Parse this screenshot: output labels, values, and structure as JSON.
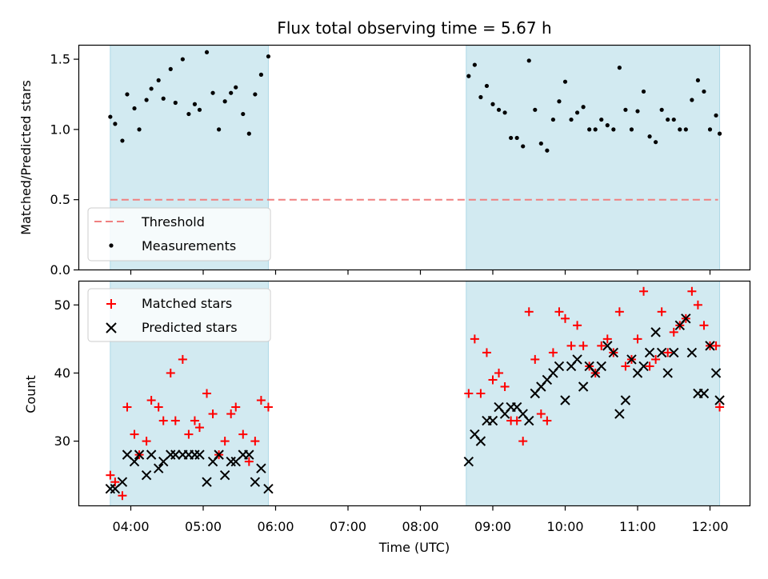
{
  "chart_data": {
    "type": "scatter",
    "title": "Flux total observing time = 5.67 h",
    "xlabel": "Time (UTC)",
    "x_tick_labels": [
      "04:00",
      "05:00",
      "06:00",
      "07:00",
      "08:00",
      "09:00",
      "10:00",
      "11:00",
      "12:00"
    ],
    "shaded_intervals": [
      [
        "03:43",
        "05:54"
      ],
      [
        "08:38",
        "12:08"
      ]
    ],
    "shade_color": "#add8e6",
    "panels": [
      {
        "ylabel": "Matched/Predicted stars",
        "ylim": [
          0,
          1.6
        ],
        "y_tick_labels": [
          "0.0",
          "0.5",
          "1.0",
          "1.5"
        ],
        "threshold": {
          "name": "Threshold",
          "value": 0.5,
          "color": "#f08080"
        },
        "series": [
          {
            "name": "Measurements",
            "color": "#000000",
            "marker": "dot",
            "points": [
              [
                "03:43",
                1.09
              ],
              [
                "03:47",
                1.04
              ],
              [
                "03:53",
                0.92
              ],
              [
                "03:57",
                1.25
              ],
              [
                "04:03",
                1.15
              ],
              [
                "04:07",
                1.0
              ],
              [
                "04:13",
                1.21
              ],
              [
                "04:17",
                1.29
              ],
              [
                "04:23",
                1.35
              ],
              [
                "04:27",
                1.22
              ],
              [
                "04:33",
                1.43
              ],
              [
                "04:37",
                1.19
              ],
              [
                "04:43",
                1.5
              ],
              [
                "04:48",
                1.11
              ],
              [
                "04:53",
                1.18
              ],
              [
                "04:57",
                1.14
              ],
              [
                "05:03",
                1.55
              ],
              [
                "05:08",
                1.26
              ],
              [
                "05:13",
                1.0
              ],
              [
                "05:18",
                1.2
              ],
              [
                "05:23",
                1.26
              ],
              [
                "05:27",
                1.3
              ],
              [
                "05:33",
                1.11
              ],
              [
                "05:38",
                0.97
              ],
              [
                "05:43",
                1.25
              ],
              [
                "05:48",
                1.39
              ],
              [
                "05:54",
                1.52
              ],
              [
                "08:40",
                1.38
              ],
              [
                "08:45",
                1.46
              ],
              [
                "08:50",
                1.23
              ],
              [
                "08:55",
                1.31
              ],
              [
                "09:00",
                1.18
              ],
              [
                "09:05",
                1.14
              ],
              [
                "09:10",
                1.12
              ],
              [
                "09:15",
                0.94
              ],
              [
                "09:20",
                0.94
              ],
              [
                "09:25",
                0.88
              ],
              [
                "09:30",
                1.49
              ],
              [
                "09:35",
                1.14
              ],
              [
                "09:40",
                0.9
              ],
              [
                "09:45",
                0.85
              ],
              [
                "09:50",
                1.07
              ],
              [
                "09:55",
                1.2
              ],
              [
                "10:00",
                1.34
              ],
              [
                "10:05",
                1.07
              ],
              [
                "10:10",
                1.12
              ],
              [
                "10:15",
                1.16
              ],
              [
                "10:20",
                1.0
              ],
              [
                "10:25",
                1.0
              ],
              [
                "10:30",
                1.07
              ],
              [
                "10:35",
                1.03
              ],
              [
                "10:40",
                1.0
              ],
              [
                "10:45",
                1.44
              ],
              [
                "10:50",
                1.14
              ],
              [
                "10:55",
                1.0
              ],
              [
                "11:00",
                1.13
              ],
              [
                "11:05",
                1.27
              ],
              [
                "11:10",
                0.95
              ],
              [
                "11:15",
                0.91
              ],
              [
                "11:20",
                1.14
              ],
              [
                "11:25",
                1.07
              ],
              [
                "11:30",
                1.07
              ],
              [
                "11:35",
                1.0
              ],
              [
                "11:40",
                1.0
              ],
              [
                "11:45",
                1.21
              ],
              [
                "11:50",
                1.35
              ],
              [
                "11:55",
                1.27
              ],
              [
                "12:00",
                1.0
              ],
              [
                "12:05",
                1.1
              ],
              [
                "12:08",
                0.97
              ]
            ]
          }
        ],
        "legend": {
          "position": "lower-left",
          "entries": [
            "Threshold",
            "Measurements"
          ]
        }
      },
      {
        "ylabel": "Count",
        "ylim": [
          20.5,
          53.5
        ],
        "y_tick_labels": [
          "30",
          "40",
          "50"
        ],
        "series": [
          {
            "name": "Matched stars",
            "color": "#ff0000",
            "marker": "plus",
            "points": [
              [
                "03:43",
                25
              ],
              [
                "03:47",
                24
              ],
              [
                "03:53",
                22
              ],
              [
                "03:57",
                35
              ],
              [
                "04:03",
                31
              ],
              [
                "04:07",
                28
              ],
              [
                "04:13",
                30
              ],
              [
                "04:17",
                36
              ],
              [
                "04:23",
                35
              ],
              [
                "04:27",
                33
              ],
              [
                "04:33",
                40
              ],
              [
                "04:37",
                33
              ],
              [
                "04:43",
                42
              ],
              [
                "04:48",
                31
              ],
              [
                "04:53",
                33
              ],
              [
                "04:57",
                32
              ],
              [
                "05:03",
                37
              ],
              [
                "05:08",
                34
              ],
              [
                "05:13",
                28
              ],
              [
                "05:18",
                30
              ],
              [
                "05:23",
                34
              ],
              [
                "05:27",
                35
              ],
              [
                "05:33",
                31
              ],
              [
                "05:38",
                27
              ],
              [
                "05:43",
                30
              ],
              [
                "05:48",
                36
              ],
              [
                "05:54",
                35
              ],
              [
                "08:40",
                37
              ],
              [
                "08:45",
                45
              ],
              [
                "08:50",
                37
              ],
              [
                "08:55",
                43
              ],
              [
                "09:00",
                39
              ],
              [
                "09:05",
                40
              ],
              [
                "09:10",
                38
              ],
              [
                "09:15",
                33
              ],
              [
                "09:20",
                33
              ],
              [
                "09:25",
                30
              ],
              [
                "09:30",
                49
              ],
              [
                "09:35",
                42
              ],
              [
                "09:40",
                34
              ],
              [
                "09:45",
                33
              ],
              [
                "09:50",
                43
              ],
              [
                "09:55",
                49
              ],
              [
                "10:00",
                48
              ],
              [
                "10:05",
                44
              ],
              [
                "10:10",
                47
              ],
              [
                "10:15",
                44
              ],
              [
                "10:20",
                41
              ],
              [
                "10:25",
                40
              ],
              [
                "10:30",
                44
              ],
              [
                "10:35",
                45
              ],
              [
                "10:40",
                43
              ],
              [
                "10:45",
                49
              ],
              [
                "10:50",
                41
              ],
              [
                "10:55",
                42
              ],
              [
                "11:00",
                45
              ],
              [
                "11:05",
                52
              ],
              [
                "11:10",
                41
              ],
              [
                "11:15",
                42
              ],
              [
                "11:20",
                49
              ],
              [
                "11:25",
                43
              ],
              [
                "11:30",
                46
              ],
              [
                "11:35",
                47
              ],
              [
                "11:40",
                48
              ],
              [
                "11:45",
                52
              ],
              [
                "11:50",
                50
              ],
              [
                "11:55",
                47
              ],
              [
                "12:00",
                44
              ],
              [
                "12:05",
                44
              ],
              [
                "12:08",
                35
              ]
            ]
          },
          {
            "name": "Predicted stars",
            "color": "#000000",
            "marker": "x",
            "points": [
              [
                "03:43",
                23
              ],
              [
                "03:47",
                23
              ],
              [
                "03:53",
                24
              ],
              [
                "03:57",
                28
              ],
              [
                "04:03",
                27
              ],
              [
                "04:07",
                28
              ],
              [
                "04:13",
                25
              ],
              [
                "04:17",
                28
              ],
              [
                "04:23",
                26
              ],
              [
                "04:27",
                27
              ],
              [
                "04:33",
                28
              ],
              [
                "04:37",
                28
              ],
              [
                "04:43",
                28
              ],
              [
                "04:48",
                28
              ],
              [
                "04:53",
                28
              ],
              [
                "04:57",
                28
              ],
              [
                "05:03",
                24
              ],
              [
                "05:08",
                27
              ],
              [
                "05:13",
                28
              ],
              [
                "05:18",
                25
              ],
              [
                "05:23",
                27
              ],
              [
                "05:27",
                27
              ],
              [
                "05:33",
                28
              ],
              [
                "05:38",
                28
              ],
              [
                "05:43",
                24
              ],
              [
                "05:48",
                26
              ],
              [
                "05:54",
                23
              ],
              [
                "08:40",
                27
              ],
              [
                "08:45",
                31
              ],
              [
                "08:50",
                30
              ],
              [
                "08:55",
                33
              ],
              [
                "09:00",
                33
              ],
              [
                "09:05",
                35
              ],
              [
                "09:10",
                34
              ],
              [
                "09:15",
                35
              ],
              [
                "09:20",
                35
              ],
              [
                "09:25",
                34
              ],
              [
                "09:30",
                33
              ],
              [
                "09:35",
                37
              ],
              [
                "09:40",
                38
              ],
              [
                "09:45",
                39
              ],
              [
                "09:50",
                40
              ],
              [
                "09:55",
                41
              ],
              [
                "10:00",
                36
              ],
              [
                "10:05",
                41
              ],
              [
                "10:10",
                42
              ],
              [
                "10:15",
                38
              ],
              [
                "10:20",
                41
              ],
              [
                "10:25",
                40
              ],
              [
                "10:30",
                41
              ],
              [
                "10:35",
                44
              ],
              [
                "10:40",
                43
              ],
              [
                "10:45",
                34
              ],
              [
                "10:50",
                36
              ],
              [
                "10:55",
                42
              ],
              [
                "11:00",
                40
              ],
              [
                "11:05",
                41
              ],
              [
                "11:10",
                43
              ],
              [
                "11:15",
                46
              ],
              [
                "11:20",
                43
              ],
              [
                "11:25",
                40
              ],
              [
                "11:30",
                43
              ],
              [
                "11:35",
                47
              ],
              [
                "11:40",
                48
              ],
              [
                "11:45",
                43
              ],
              [
                "11:50",
                37
              ],
              [
                "11:55",
                37
              ],
              [
                "12:00",
                44
              ],
              [
                "12:05",
                40
              ],
              [
                "12:08",
                36
              ]
            ]
          }
        ],
        "legend": {
          "position": "upper-left",
          "entries": [
            "Matched stars",
            "Predicted stars"
          ]
        }
      }
    ]
  }
}
